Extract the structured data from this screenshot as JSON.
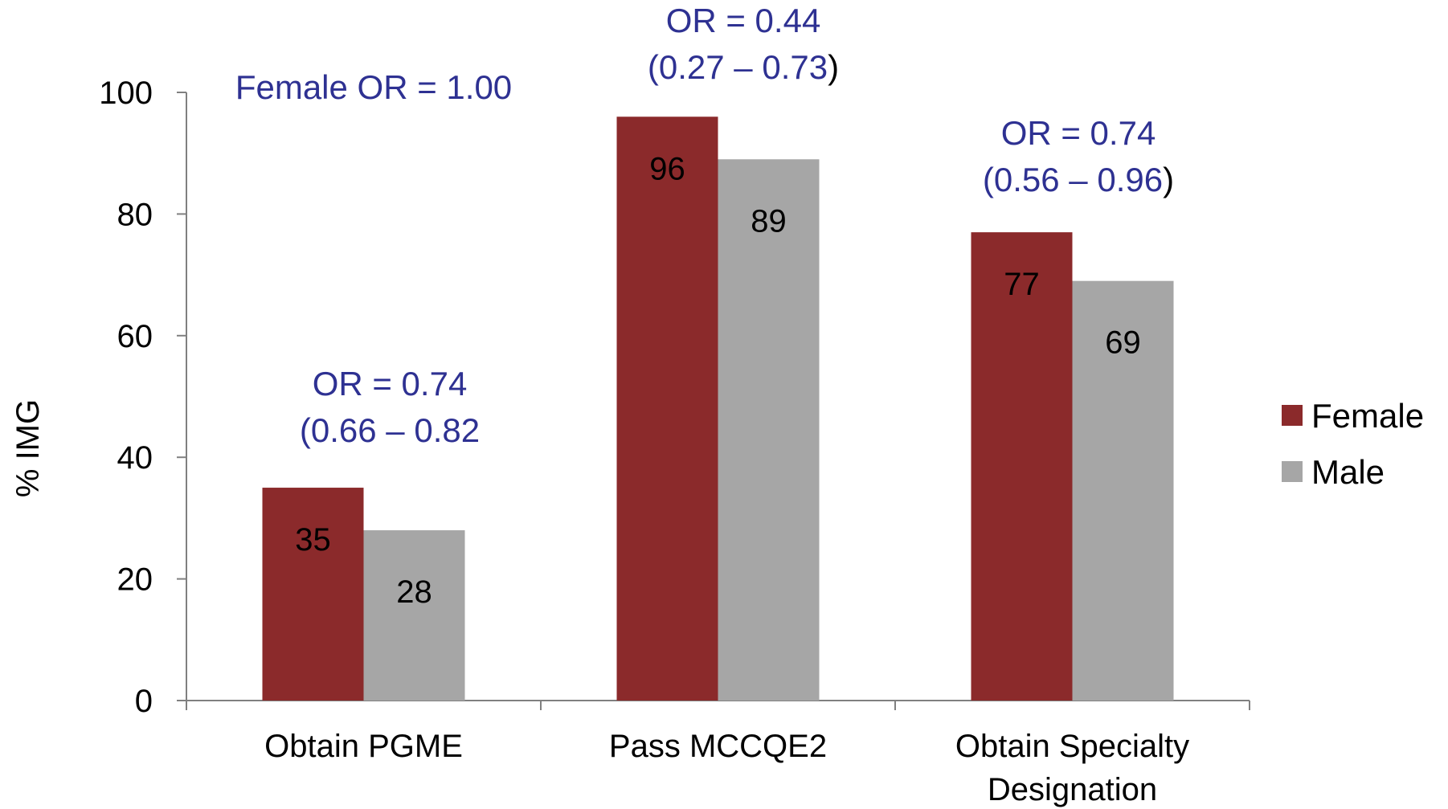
{
  "chart_data": {
    "type": "bar",
    "categories": [
      [
        "Obtain PGME"
      ],
      [
        "Pass MCCQE2"
      ],
      [
        "Obtain Specialty",
        "Designation"
      ]
    ],
    "series": [
      {
        "name": "Female",
        "values": [
          35,
          96,
          77
        ],
        "color": "#8b2a2b"
      },
      {
        "name": "Male",
        "values": [
          28,
          89,
          69
        ],
        "color": "#a6a6a6"
      }
    ],
    "title": "",
    "xlabel": "",
    "ylabel": "% IMG",
    "ylim": [
      0,
      100
    ],
    "yticks": [
      0,
      20,
      40,
      60,
      80,
      100
    ],
    "grid": false,
    "legend_position": "right",
    "annotations": [
      {
        "category_index": 0,
        "lines": [
          "Female OR = 1.00"
        ]
      },
      {
        "category_index": 0,
        "lines": [
          "OR = 0.74",
          "(0.66 – 0.82"
        ]
      },
      {
        "category_index": 1,
        "lines": [
          "OR = 0.44",
          "(0.27 – 0.73)"
        ]
      },
      {
        "category_index": 2,
        "lines": [
          "OR = 0.74",
          "(0.56 – 0.96)"
        ]
      }
    ],
    "annotation_color": "#2e3192",
    "annotation_paren_color": "#000000"
  }
}
